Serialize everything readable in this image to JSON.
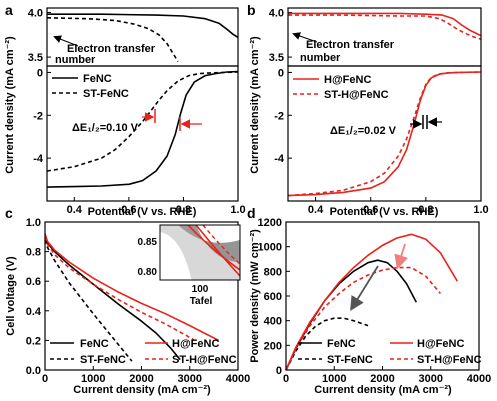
{
  "colors": {
    "black": "#000000",
    "red": "#e8221c",
    "inset_gray_dark": "#8a8a8a",
    "inset_gray_light": "#d8d8d8"
  },
  "panels": {
    "a": {
      "letter": "a",
      "xlabel": "Potential (V vs. RHE)",
      "ylabel": "Current density (mA cm⁻²)",
      "xticks": [
        "0.4",
        "0.6",
        "0.8",
        "1.0"
      ],
      "yticks_bottom": [
        "0",
        "-2",
        "-4"
      ],
      "yticks_top": [
        "4.0",
        "3.5"
      ],
      "annotation": "Electron transfer",
      "annotation2": "number",
      "delta": "ΔE₁/₂=0.10 V",
      "legend": [
        "FeNC",
        "ST-FeNC"
      ]
    },
    "b": {
      "letter": "b",
      "xlabel": "Potential (V vs. RHE)",
      "ylabel": "Current density (mA cm⁻²)",
      "xticks": [
        "0.4",
        "0.6",
        "0.8",
        "1.0"
      ],
      "yticks_bottom": [
        "0",
        "-2",
        "-4"
      ],
      "yticks_top": [
        "4.0",
        "3.5"
      ],
      "annotation": "Electron transfer",
      "annotation2": "number",
      "delta": "ΔE₁/₂=0.02 V",
      "legend": [
        "H@FeNC",
        "ST-H@FeNC"
      ]
    },
    "c": {
      "letter": "c",
      "xlabel": "Current density (mA cm⁻²)",
      "ylabel": "Cell voltage (V)",
      "xticks": [
        "0",
        "1000",
        "2000",
        "3000",
        "4000"
      ],
      "yticks": [
        "0.0",
        "0.2",
        "0.4",
        "0.6",
        "0.8",
        "1.0"
      ],
      "inset_yticks": [
        "0.85",
        "0.80"
      ],
      "inset_xtick": "100",
      "inset_label": "Tafel",
      "legend": [
        "FeNC",
        "ST-FeNC",
        "H@FeNC",
        "ST-H@FeNC"
      ]
    },
    "d": {
      "letter": "d",
      "xlabel": "Current density (mA cm⁻²)",
      "ylabel": "Power density (mW cm⁻²)",
      "xticks": [
        "0",
        "1000",
        "2000",
        "3000",
        "4000"
      ],
      "yticks": [
        "0",
        "200",
        "400",
        "600",
        "800",
        "1000",
        "1200"
      ],
      "legend": [
        "FeNC",
        "ST-FeNC",
        "H@FeNC",
        "ST-H@FeNC"
      ]
    }
  },
  "chart_data": [
    {
      "panel": "a",
      "type": "line",
      "xlim": [
        0.3,
        1.0
      ],
      "ylim": [
        -6,
        0.3
      ],
      "ylim_top": [
        3.4,
        4.05
      ],
      "series": [
        {
          "name": "FeNC",
          "style": "solid",
          "color": "black",
          "x": [
            0.3,
            0.4,
            0.5,
            0.6,
            0.65,
            0.7,
            0.74,
            0.77,
            0.79,
            0.81,
            0.84,
            0.88,
            0.92,
            0.96,
            1.0
          ],
          "y": [
            -5.35,
            -5.33,
            -5.3,
            -5.22,
            -5.05,
            -4.6,
            -3.9,
            -2.9,
            -1.9,
            -1.05,
            -0.45,
            -0.15,
            -0.05,
            0.02,
            0.04
          ]
        },
        {
          "name": "ST-FeNC",
          "style": "dashed",
          "color": "black",
          "x": [
            0.3,
            0.4,
            0.5,
            0.55,
            0.6,
            0.65,
            0.68,
            0.71,
            0.74,
            0.78,
            0.82,
            0.86,
            0.9,
            0.95,
            1.0
          ],
          "y": [
            -4.6,
            -4.4,
            -4.0,
            -3.6,
            -3.0,
            -2.3,
            -1.8,
            -1.3,
            -0.85,
            -0.4,
            -0.15,
            -0.05,
            -0.02,
            0.0,
            0.02
          ]
        }
      ],
      "electron_transfer": [
        {
          "name": "FeNC",
          "style": "solid",
          "x": [
            0.3,
            0.5,
            0.7,
            0.8,
            0.88,
            0.93,
            0.96,
            0.98,
            1.0
          ],
          "y": [
            3.98,
            3.98,
            3.97,
            3.96,
            3.93,
            3.88,
            3.81,
            3.76,
            3.72
          ]
        },
        {
          "name": "ST-FeNC",
          "style": "dashed",
          "x": [
            0.3,
            0.45,
            0.55,
            0.62,
            0.67,
            0.71,
            0.74,
            0.76,
            0.78
          ],
          "y": [
            3.94,
            3.93,
            3.91,
            3.87,
            3.82,
            3.75,
            3.65,
            3.55,
            3.45
          ]
        }
      ]
    },
    {
      "panel": "b",
      "type": "line",
      "xlim": [
        0.3,
        1.0
      ],
      "ylim": [
        -6,
        0.3
      ],
      "ylim_top": [
        3.4,
        4.05
      ],
      "series": [
        {
          "name": "H@FeNC",
          "style": "solid",
          "color": "red",
          "x": [
            0.3,
            0.4,
            0.5,
            0.6,
            0.65,
            0.7,
            0.73,
            0.76,
            0.78,
            0.8,
            0.82,
            0.85,
            0.88,
            0.92,
            1.0
          ],
          "y": [
            -5.75,
            -5.7,
            -5.6,
            -5.4,
            -5.1,
            -4.4,
            -3.6,
            -2.3,
            -1.3,
            -0.6,
            -0.25,
            -0.08,
            -0.02,
            0.0,
            0.02
          ]
        },
        {
          "name": "ST-H@FeNC",
          "style": "dashed",
          "color": "red",
          "x": [
            0.3,
            0.4,
            0.5,
            0.6,
            0.65,
            0.7,
            0.73,
            0.76,
            0.78,
            0.8,
            0.82,
            0.85,
            0.88,
            0.92,
            1.0
          ],
          "y": [
            -5.75,
            -5.65,
            -5.5,
            -5.1,
            -4.7,
            -3.9,
            -3.1,
            -2.0,
            -1.2,
            -0.55,
            -0.22,
            -0.07,
            -0.02,
            0.0,
            0.02
          ]
        }
      ],
      "electron_transfer": [
        {
          "name": "H@FeNC",
          "style": "solid",
          "x": [
            0.3,
            0.5,
            0.7,
            0.8,
            0.86,
            0.9,
            0.93,
            0.96,
            0.98,
            1.0
          ],
          "y": [
            3.99,
            3.99,
            3.99,
            3.98,
            3.97,
            3.93,
            3.86,
            3.8,
            3.77,
            3.74
          ]
        },
        {
          "name": "ST-H@FeNC",
          "style": "dashed",
          "x": [
            0.3,
            0.5,
            0.7,
            0.8,
            0.85,
            0.88,
            0.91,
            0.94,
            0.97,
            1.0
          ],
          "y": [
            3.97,
            3.97,
            3.96,
            3.96,
            3.93,
            3.88,
            3.82,
            3.77,
            3.73,
            3.7
          ]
        }
      ]
    },
    {
      "panel": "c",
      "type": "line",
      "xlim": [
        0,
        4000
      ],
      "ylim": [
        0,
        1.0
      ],
      "series": [
        {
          "name": "FeNC",
          "style": "solid",
          "color": "black",
          "x": [
            0,
            50,
            200,
            500,
            1000,
            1500,
            2000,
            2300,
            2600,
            2800
          ],
          "y": [
            0.9,
            0.86,
            0.8,
            0.71,
            0.58,
            0.45,
            0.33,
            0.25,
            0.15,
            0.07
          ]
        },
        {
          "name": "ST-FeNC",
          "style": "dashed",
          "color": "black",
          "x": [
            0,
            50,
            200,
            500,
            1000,
            1400,
            1800
          ],
          "y": [
            0.88,
            0.83,
            0.74,
            0.59,
            0.38,
            0.22,
            0.06
          ]
        },
        {
          "name": "H@FeNC",
          "style": "solid",
          "color": "red",
          "x": [
            0,
            50,
            200,
            500,
            1000,
            1500,
            2000,
            2500,
            3000,
            3600
          ],
          "y": [
            0.92,
            0.87,
            0.81,
            0.73,
            0.62,
            0.53,
            0.45,
            0.38,
            0.3,
            0.2
          ]
        },
        {
          "name": "ST-H@FeNC",
          "style": "dashed",
          "color": "red",
          "x": [
            0,
            50,
            200,
            500,
            1000,
            1500,
            2000,
            2500,
            3000,
            3100
          ],
          "y": [
            0.9,
            0.85,
            0.78,
            0.69,
            0.58,
            0.48,
            0.39,
            0.31,
            0.22,
            0.2
          ]
        }
      ]
    },
    {
      "panel": "d",
      "type": "line",
      "xlim": [
        0,
        4000
      ],
      "ylim": [
        0,
        1200
      ],
      "series": [
        {
          "name": "FeNC",
          "style": "solid",
          "color": "black",
          "x": [
            0,
            200,
            500,
            800,
            1100,
            1400,
            1700,
            1900,
            2100,
            2300,
            2500,
            2700
          ],
          "y": [
            0,
            170,
            380,
            560,
            700,
            800,
            870,
            890,
            870,
            800,
            700,
            550
          ]
        },
        {
          "name": "ST-FeNC",
          "style": "dashed",
          "color": "black",
          "x": [
            0,
            200,
            400,
            600,
            800,
            1000,
            1200,
            1400,
            1700
          ],
          "y": [
            0,
            150,
            270,
            350,
            400,
            420,
            420,
            400,
            360
          ]
        },
        {
          "name": "H@FeNC",
          "style": "solid",
          "color": "red",
          "x": [
            0,
            200,
            500,
            800,
            1100,
            1400,
            1700,
            2000,
            2300,
            2600,
            2900,
            3200,
            3550
          ],
          "y": [
            0,
            180,
            390,
            560,
            710,
            830,
            930,
            1010,
            1070,
            1100,
            1060,
            950,
            720
          ]
        },
        {
          "name": "ST-H@FeNC",
          "style": "dashed",
          "color": "red",
          "x": [
            0,
            200,
            500,
            800,
            1100,
            1400,
            1700,
            2000,
            2300,
            2600,
            2900,
            3200
          ],
          "y": [
            0,
            170,
            360,
            510,
            620,
            710,
            770,
            810,
            830,
            830,
            760,
            620
          ]
        }
      ]
    }
  ]
}
